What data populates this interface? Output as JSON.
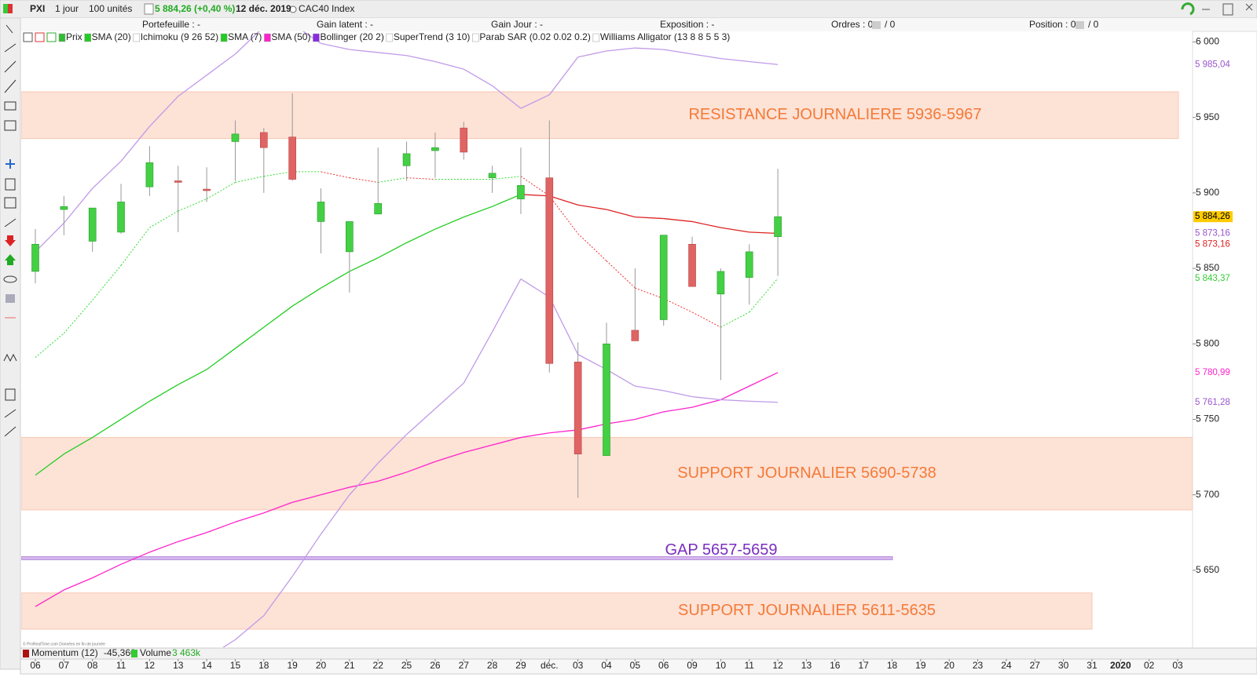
{
  "toolbar": {
    "symbol": "PXI",
    "period": "1 jour",
    "quantity": "100 unités",
    "quote": "5 884,26 (+0,40 %)",
    "date": "12 déc. 2019",
    "instrument": "CAC40 Index"
  },
  "account_bar": {
    "portfolio": "Portefeuille : -",
    "latent_gain": "Gain latent : -",
    "day_gain": "Gain Jour : -",
    "exposure": "Exposition : -",
    "orders": "Ordres : 0",
    "orders_total": "/ 0",
    "position": "Position : 0",
    "position_total": "/ 0"
  },
  "indicators": [
    {
      "name": "Prix",
      "color": "#33bb33"
    },
    {
      "name": "SMA (20)",
      "color": "#22cc22"
    },
    {
      "name": "Ichimoku (9 26 52)",
      "color": "#ffffff"
    },
    {
      "name": "SMA (7)",
      "color": "#22cc22"
    },
    {
      "name": "SMA (50)",
      "color": "#ff22cc"
    },
    {
      "name": "Bollinger (20 2)",
      "color": "#8a2be2"
    },
    {
      "name": "SuperTrend (3 10)",
      "color": "#ffffff"
    },
    {
      "name": "Parab SAR (0.02 0.02 0.2)",
      "color": "#ffffff"
    },
    {
      "name": "Williams Alligator (13 8 8 5 5 3)",
      "color": "#ffffff"
    }
  ],
  "bottom_bar": {
    "momentum": "Momentum (12)",
    "momentum_value": "-45,360",
    "volume": "Volume",
    "volume_value": "3 463k",
    "credit": "© ProRealTime.com Données en fin de journée"
  },
  "chart_data": {
    "type": "candlestick",
    "categories": [
      "06",
      "07",
      "08",
      "11",
      "12",
      "13",
      "14",
      "15",
      "18",
      "19",
      "20",
      "21",
      "22",
      "25",
      "26",
      "27",
      "28",
      "29",
      "déc.",
      "03",
      "04",
      "05",
      "06",
      "09",
      "10",
      "11",
      "12",
      "13",
      "16",
      "17",
      "18",
      "19",
      "20",
      "23",
      "24",
      "27",
      "30",
      "31",
      "2020",
      "02",
      "03"
    ],
    "open": [
      5848,
      5889,
      5868,
      5874,
      5904,
      5908,
      5902.5,
      5934,
      5940,
      5937,
      5881,
      5861,
      5886,
      5918,
      5928,
      5943,
      5910,
      5896,
      5910,
      5788,
      5726,
      5809,
      5816,
      5866,
      5833,
      5844,
      5871,
      null,
      null,
      null,
      null,
      null,
      null,
      null,
      null,
      null,
      null,
      null,
      null,
      null,
      null
    ],
    "high": [
      5876,
      5898,
      5890,
      5906,
      5931,
      5918,
      5917,
      5948,
      5943,
      5966,
      5903,
      5881,
      5930,
      5934,
      5940,
      5947,
      5918,
      5930,
      5948,
      5801,
      5814,
      5850,
      5872,
      5871,
      5850,
      5866,
      5916,
      null,
      null,
      null,
      null,
      null,
      null,
      null,
      null,
      null,
      null,
      null,
      null,
      null,
      null
    ],
    "low": [
      5840,
      5872,
      5861,
      5873,
      5898,
      5874,
      5894,
      5908,
      5900,
      5908,
      5860,
      5834,
      5886,
      5908,
      5910,
      5922,
      5900,
      5886,
      5781,
      5698,
      5726,
      5802,
      5812,
      5838,
      5776,
      5826,
      5845,
      null,
      null,
      null,
      null,
      null,
      null,
      null,
      null,
      null,
      null,
      null,
      null,
      null,
      null
    ],
    "close": [
      5866,
      5891,
      5890,
      5894,
      5920,
      5907,
      5901.5,
      5939,
      5930,
      5909,
      5894,
      5881,
      5893,
      5926,
      5930,
      5927,
      5913,
      5905,
      5787,
      5727,
      5800,
      5802,
      5872,
      5838,
      5848,
      5861,
      5884.26,
      null,
      null,
      null,
      null,
      null,
      null,
      null,
      null,
      null,
      null,
      null,
      null,
      null,
      null
    ],
    "up_color": "#44d044",
    "down_color": "#e06464",
    "series": [
      {
        "color": "#22cc22",
        "down_color": "#dd2222",
        "style": "solid",
        "values": [
          5713,
          5727,
          5738,
          5750,
          5762,
          5773,
          5783,
          5797,
          5811,
          5825,
          5837,
          5848,
          5857,
          5867,
          5876,
          5884,
          5891,
          5899,
          5898,
          5892,
          5889,
          5884,
          5883,
          5881,
          5877,
          5874,
          5873.16,
          null,
          null,
          null,
          null,
          null,
          null,
          null,
          null,
          null,
          null,
          null,
          null,
          null,
          null
        ]
      },
      {
        "color": "#33dd33",
        "down_color": "#ee3333",
        "style": "dotted",
        "values": [
          5791,
          5807,
          5829,
          5852,
          5877,
          5888,
          5896,
          5907,
          5911,
          5914,
          5914,
          5910,
          5907,
          5910,
          5909,
          5909,
          5909,
          5911,
          5898,
          5873,
          5855,
          5837,
          5830,
          5821,
          5811,
          5821,
          5843.37,
          null,
          null,
          null,
          null,
          null,
          null,
          null,
          null,
          null,
          null,
          null,
          null,
          null,
          null
        ]
      },
      {
        "color": "#ff22cc",
        "style": "solid",
        "values": [
          5626,
          5637,
          5645,
          5654,
          5662,
          5669,
          5675,
          5682,
          5688,
          5695,
          5700,
          5705,
          5709,
          5715,
          5722,
          5728,
          5733,
          5738,
          5741,
          5743,
          5747,
          5750,
          5755,
          5758,
          5763,
          5772,
          5780.99,
          null,
          null,
          null,
          null,
          null,
          null,
          null,
          null,
          null,
          null,
          null,
          null,
          null,
          null
        ]
      },
      {
        "color": "#c09ae8",
        "style": "solid",
        "values": [
          5861,
          5880,
          5903,
          5921,
          5944,
          5964,
          5978,
          5992,
          6010,
          6012,
          5999,
          5995,
          5993,
          5991,
          5987,
          5982,
          5971,
          5956,
          5965,
          5990,
          5994,
          5996,
          5995,
          5992,
          5989,
          5987,
          5985.04,
          null,
          null,
          null,
          null,
          null,
          null,
          null,
          null,
          null,
          null,
          null,
          null,
          null,
          null
        ]
      },
      {
        "color": "#c09ae8",
        "style": "solid",
        "values": [
          null,
          null,
          null,
          null,
          null,
          null,
          5592,
          5604,
          5620,
          5646,
          5674,
          5700,
          5721,
          5740,
          5757,
          5774,
          5808,
          5843,
          5831,
          5793,
          5783,
          5772,
          5769,
          5765,
          5763,
          5762,
          5761.28,
          null,
          null,
          null,
          null,
          null,
          null,
          null,
          null,
          null,
          null,
          null,
          null,
          null,
          null
        ]
      }
    ],
    "zones": [
      {
        "label": "RESISTANCE JOURNALIERE 5936-5967",
        "low": 5936,
        "high": 5967,
        "color": "#fde2d6",
        "text_color": "#f47a38"
      },
      {
        "label": "SUPPORT JOURNALIER 5690-5738",
        "low": 5690,
        "high": 5738,
        "color": "#fde2d6",
        "text_color": "#f47a38"
      },
      {
        "label": "GAP 5657-5659",
        "low": 5657,
        "high": 5659,
        "color": "#d6b8f0",
        "text_color": "#7a2ec0"
      },
      {
        "label": "SUPPORT JOURNALIER 5611-5635",
        "low": 5611,
        "high": 5635,
        "color": "#fde2d6",
        "text_color": "#f47a38"
      }
    ],
    "last_value_labels": [
      {
        "value": 5985.04,
        "label": "5 985,04",
        "color": "#9955cc"
      },
      {
        "value": 5884.26,
        "label": "5 884,26",
        "color": "#000000",
        "background": "#ffcc00"
      },
      {
        "value": 5873.16,
        "label": "5 873,16",
        "color": "#9955cc"
      },
      {
        "value": 5873.16,
        "label": "5 873,16",
        "color": "#dd2222"
      },
      {
        "value": 5843.37,
        "label": "5 843,37",
        "color": "#33cc33"
      },
      {
        "value": 5780.99,
        "label": "5 780,99",
        "color": "#ff22cc"
      },
      {
        "value": 5761.28,
        "label": "5 761,28",
        "color": "#9955cc"
      }
    ],
    "ylim": [
      5599,
      6007
    ],
    "yticks": [
      {
        "value": 6000,
        "label": "6 000"
      },
      {
        "value": 5950,
        "label": "5 950"
      },
      {
        "value": 5900,
        "label": "5 900"
      },
      {
        "value": 5850,
        "label": "5 850"
      },
      {
        "value": 5800,
        "label": "5 800"
      },
      {
        "value": 5750,
        "label": "5 750"
      },
      {
        "value": 5700,
        "label": "5 700"
      },
      {
        "value": 5650,
        "label": "5 650"
      }
    ]
  }
}
